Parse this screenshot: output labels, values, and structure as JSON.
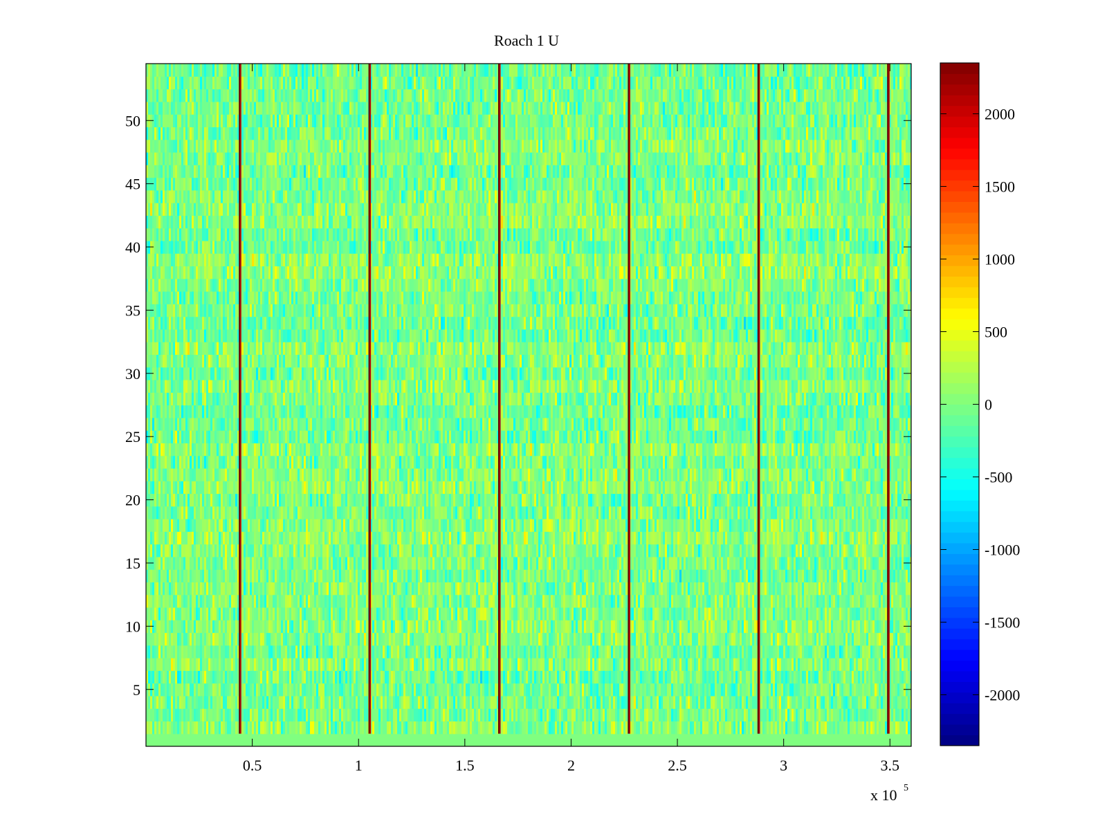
{
  "chart_data": {
    "type": "heatmap",
    "title": "Roach 1 U",
    "xlabel": "",
    "ylabel": "",
    "x_range": [
      0,
      360000
    ],
    "y_range": [
      0.5,
      54.5
    ],
    "rows": 54,
    "x_exponent_label": "x 10",
    "x_exponent_power": "5",
    "x_ticks": [
      {
        "value": 0.5,
        "label": "0.5"
      },
      {
        "value": 1.0,
        "label": "1"
      },
      {
        "value": 1.5,
        "label": "1.5"
      },
      {
        "value": 2.0,
        "label": "2"
      },
      {
        "value": 2.5,
        "label": "2.5"
      },
      {
        "value": 3.0,
        "label": "3"
      },
      {
        "value": 3.5,
        "label": "3.5"
      }
    ],
    "y_ticks": [
      {
        "value": 5,
        "label": "5"
      },
      {
        "value": 10,
        "label": "10"
      },
      {
        "value": 15,
        "label": "15"
      },
      {
        "value": 20,
        "label": "20"
      },
      {
        "value": 25,
        "label": "25"
      },
      {
        "value": 30,
        "label": "30"
      },
      {
        "value": 35,
        "label": "35"
      },
      {
        "value": 40,
        "label": "40"
      },
      {
        "value": 45,
        "label": "45"
      },
      {
        "value": 50,
        "label": "50"
      }
    ],
    "colorbar": {
      "colormap": "jet",
      "range": [
        -2350,
        2350
      ],
      "ticks": [
        {
          "value": 2000,
          "label": "2000"
        },
        {
          "value": 1500,
          "label": "1500"
        },
        {
          "value": 1000,
          "label": "1000"
        },
        {
          "value": 500,
          "label": "500"
        },
        {
          "value": 0,
          "label": "0"
        },
        {
          "value": -500,
          "label": "-500"
        },
        {
          "value": -1000,
          "label": "-1000"
        },
        {
          "value": -1500,
          "label": "-1500"
        },
        {
          "value": -2000,
          "label": "-2000"
        }
      ]
    },
    "spike_columns_x": [
      44000,
      105000,
      166000,
      227000,
      288000,
      349000
    ],
    "typical_value_range": [
      -900,
      900
    ],
    "colors": {
      "axis": "#000000",
      "background": "#ffffff",
      "bottom_row_fill": "#80ff80"
    }
  }
}
